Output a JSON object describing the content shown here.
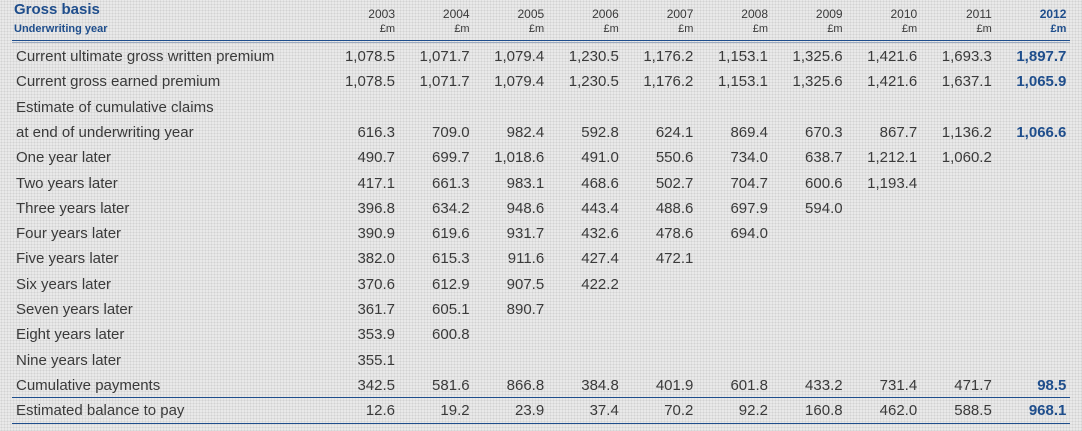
{
  "header": {
    "title": "Gross basis",
    "subtitle": "Underwriting year"
  },
  "columns": [
    {
      "year": "2003",
      "unit": "£m"
    },
    {
      "year": "2004",
      "unit": "£m"
    },
    {
      "year": "2005",
      "unit": "£m"
    },
    {
      "year": "2006",
      "unit": "£m"
    },
    {
      "year": "2007",
      "unit": "£m"
    },
    {
      "year": "2008",
      "unit": "£m"
    },
    {
      "year": "2009",
      "unit": "£m"
    },
    {
      "year": "2010",
      "unit": "£m"
    },
    {
      "year": "2011",
      "unit": "£m"
    },
    {
      "year": "2012",
      "unit": "£m"
    }
  ],
  "rows": [
    {
      "label": "Current ultimate gross written premium",
      "values": [
        "1,078.5",
        "1,071.7",
        "1,079.4",
        "1,230.5",
        "1,176.2",
        "1,153.1",
        "1,325.6",
        "1,421.6",
        "1,693.3",
        "1,897.7"
      ]
    },
    {
      "label": "Current gross earned premium",
      "values": [
        "1,078.5",
        "1,071.7",
        "1,079.4",
        "1,230.5",
        "1,176.2",
        "1,153.1",
        "1,325.6",
        "1,421.6",
        "1,637.1",
        "1,065.9"
      ]
    },
    {
      "label": "Estimate of cumulative claims",
      "values": []
    },
    {
      "label": "at end of underwriting year",
      "values": [
        "616.3",
        "709.0",
        "982.4",
        "592.8",
        "624.1",
        "869.4",
        "670.3",
        "867.7",
        "1,136.2",
        "1,066.6"
      ]
    },
    {
      "label": "One year later",
      "values": [
        "490.7",
        "699.7",
        "1,018.6",
        "491.0",
        "550.6",
        "734.0",
        "638.7",
        "1,212.1",
        "1,060.2"
      ]
    },
    {
      "label": "Two years later",
      "values": [
        "417.1",
        "661.3",
        "983.1",
        "468.6",
        "502.7",
        "704.7",
        "600.6",
        "1,193.4"
      ]
    },
    {
      "label": "Three years later",
      "values": [
        "396.8",
        "634.2",
        "948.6",
        "443.4",
        "488.6",
        "697.9",
        "594.0"
      ]
    },
    {
      "label": "Four years later",
      "values": [
        "390.9",
        "619.6",
        "931.7",
        "432.6",
        "478.6",
        "694.0"
      ]
    },
    {
      "label": "Five years later",
      "values": [
        "382.0",
        "615.3",
        "911.6",
        "427.4",
        "472.1"
      ]
    },
    {
      "label": "Six years later",
      "values": [
        "370.6",
        "612.9",
        "907.5",
        "422.2"
      ]
    },
    {
      "label": "Seven years later",
      "values": [
        "361.7",
        "605.1",
        "890.7"
      ]
    },
    {
      "label": "Eight years later",
      "values": [
        "353.9",
        "600.8"
      ]
    },
    {
      "label": "Nine years later",
      "values": [
        "355.1"
      ]
    },
    {
      "label": "Cumulative payments",
      "values": [
        "342.5",
        "581.6",
        "866.8",
        "384.8",
        "401.9",
        "601.8",
        "433.2",
        "731.4",
        "471.7",
        "98.5"
      ]
    },
    {
      "label": "Estimated balance to pay",
      "values": [
        "12.6",
        "19.2",
        "23.9",
        "37.4",
        "70.2",
        "92.2",
        "160.8",
        "462.0",
        "588.5",
        "968.1"
      ]
    }
  ]
}
